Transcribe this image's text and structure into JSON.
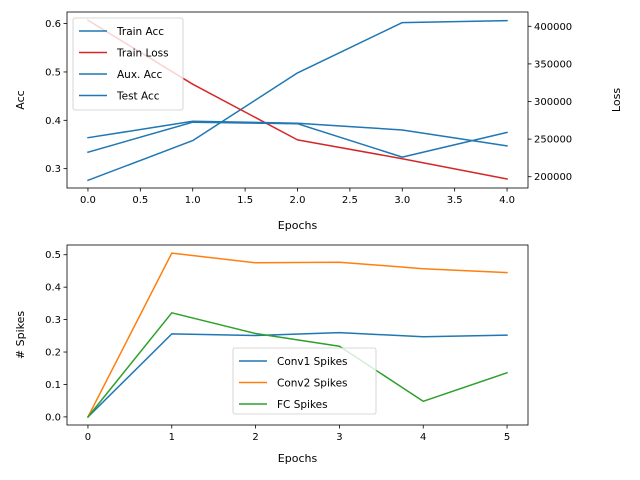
{
  "chart_data": [
    {
      "type": "line",
      "xlabel": "Epochs",
      "ylabel": "Acc",
      "y2label": "Loss",
      "x": [
        0,
        1,
        2,
        3,
        4
      ],
      "xlim": [
        -0.2,
        4.2
      ],
      "xticks": [
        0.0,
        0.5,
        1.0,
        1.5,
        2.0,
        2.5,
        3.0,
        3.5,
        4.0
      ],
      "xtick_labels": [
        "0.0",
        "0.5",
        "1.0",
        "1.5",
        "2.0",
        "2.5",
        "3.0",
        "3.5",
        "4.0"
      ],
      "ylim": [
        0.26,
        0.624
      ],
      "yticks": [
        0.3,
        0.4,
        0.5,
        0.6
      ],
      "ytick_labels": [
        "0.3",
        "0.4",
        "0.5",
        "0.6"
      ],
      "y2lim": [
        185000,
        419000
      ],
      "y2ticks": [
        200000,
        250000,
        300000,
        350000,
        400000
      ],
      "y2tick_labels": [
        "200000",
        "250000",
        "300000",
        "350000",
        "400000"
      ],
      "legend_position": "top-left",
      "series": [
        {
          "name": "Train Acc",
          "axis": "left",
          "color": "#1f77b4",
          "values": [
            0.276,
            0.358,
            0.498,
            0.602,
            0.606
          ]
        },
        {
          "name": "Train Loss",
          "axis": "right",
          "color": "#d62728",
          "values": [
            408000,
            323000,
            249000,
            224000,
            197000
          ]
        },
        {
          "name": "Aux. Acc",
          "axis": "left",
          "color": "#1f77b4",
          "values": [
            0.364,
            0.398,
            0.394,
            0.38,
            0.347
          ]
        },
        {
          "name": "Test Acc",
          "axis": "left",
          "color": "#1f77b4",
          "values": [
            0.334,
            0.396,
            0.393,
            0.324,
            0.375
          ]
        }
      ]
    },
    {
      "type": "line",
      "xlabel": "Epochs",
      "ylabel": "# Spikes",
      "x": [
        0,
        1,
        2,
        3,
        4,
        5
      ],
      "xlim": [
        -0.25,
        5.25
      ],
      "xticks": [
        0,
        1,
        2,
        3,
        4,
        5
      ],
      "xtick_labels": [
        "0",
        "1",
        "2",
        "3",
        "4",
        "5"
      ],
      "ylim": [
        -0.025,
        0.53
      ],
      "yticks": [
        0.0,
        0.1,
        0.2,
        0.3,
        0.4,
        0.5
      ],
      "ytick_labels": [
        "0.0",
        "0.1",
        "0.2",
        "0.3",
        "0.4",
        "0.5"
      ],
      "legend_position": "lower-center",
      "series": [
        {
          "name": "Conv1 Spikes",
          "color": "#1f77b4",
          "values": [
            0.0,
            0.256,
            0.251,
            0.26,
            0.247,
            0.252
          ]
        },
        {
          "name": "Conv2 Spikes",
          "color": "#ff7f0e",
          "values": [
            0.0,
            0.505,
            0.475,
            0.477,
            0.457,
            0.445
          ]
        },
        {
          "name": "FC Spikes",
          "color": "#2ca02c",
          "values": [
            0.0,
            0.321,
            0.257,
            0.218,
            0.048,
            0.136
          ]
        }
      ]
    }
  ]
}
